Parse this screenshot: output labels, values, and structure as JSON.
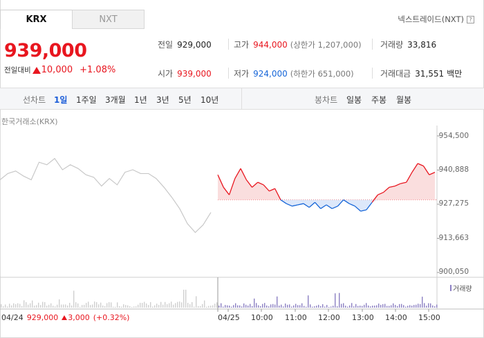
{
  "tabs": [
    {
      "label": "KRX"
    },
    {
      "label": "NXT"
    }
  ],
  "nxt_link": {
    "label": "넥스트레이드(NXT)",
    "help": "?"
  },
  "summary": {
    "price": "939,000",
    "change_label": "전일대비",
    "change_amount": "10,000",
    "change_rate": "+1.08%"
  },
  "quote": {
    "prev_close_label": "전일",
    "prev_close": "929,000",
    "high_label": "고가",
    "high": "944,000",
    "upper_limit": "(상한가 1,207,000)",
    "volume_label": "거래량",
    "volume": "33,816",
    "open_label": "시가",
    "open": "939,000",
    "low_label": "저가",
    "low": "924,000",
    "lower_limit": "(하한가 651,000)",
    "value_label": "거래대금",
    "value": "31,551",
    "value_unit": "백만"
  },
  "period_bar": {
    "line_caption": "선차트",
    "line_items": [
      "1일",
      "1주일",
      "3개월",
      "1년",
      "3년",
      "5년",
      "10년"
    ],
    "selected": "1일",
    "candle_caption": "봉차트",
    "candle_items": [
      "일봉",
      "주봉",
      "월봉"
    ]
  },
  "chart": {
    "exchange_label": "한국거래소(KRX)",
    "y_ticks": [
      "954,500",
      "940,888",
      "927,275",
      "913,663",
      "900,050"
    ],
    "volume_label": "거래량",
    "prev_day_info": {
      "date": "04/24",
      "close": "929,000",
      "change": "3,000",
      "rate": "(+0.32%)"
    },
    "x_ticks": [
      "04/25",
      "10:00",
      "11:00",
      "12:00",
      "13:00",
      "14:00",
      "15:00"
    ]
  },
  "chart_data": {
    "type": "line",
    "base_price": 929000,
    "ylim": [
      900050,
      954500
    ],
    "previous_day": [
      937000,
      939500,
      940500,
      938500,
      937000,
      944000,
      943000,
      945500,
      941000,
      943000,
      941500,
      939000,
      938000,
      934500,
      937500,
      935000,
      940000,
      941000,
      939500,
      939500,
      937500,
      934000,
      930000,
      925500,
      919500,
      916000,
      919000,
      924000
    ],
    "today": [
      939000,
      934000,
      931000,
      937500,
      941500,
      937000,
      934000,
      936000,
      935000,
      932500,
      933500,
      929000,
      927500,
      926500,
      927000,
      927500,
      926000,
      928000,
      925500,
      927000,
      925500,
      926500,
      929000,
      927500,
      926500,
      924500,
      925000,
      928000,
      931000,
      932000,
      934000,
      934500,
      935500,
      936000,
      940000,
      943500,
      942500,
      939000,
      940000
    ]
  },
  "colors": {
    "up": "#e8161f",
    "down": "#1565d8",
    "accent": "#1a5cd8",
    "volume": "#8b7fc3",
    "prev_line": "#c8c8c8"
  }
}
